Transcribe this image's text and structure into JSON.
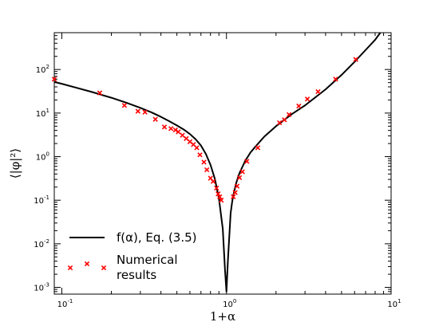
{
  "chart_data": {
    "type": "scatter",
    "xscale": "log",
    "yscale": "log",
    "xlim": [
      0.09,
      10
    ],
    "ylim": [
      0.0007,
      700
    ],
    "grid": false,
    "legend_placement": "lower-left",
    "xlabel": "1+α",
    "ylabel": "⟨|φ|²⟩",
    "x_ticks": [
      {
        "value": 0.1,
        "mantissa": "10",
        "exp": "-1"
      },
      {
        "value": 1,
        "mantissa": "10",
        "exp": "0"
      },
      {
        "value": 10,
        "mantissa": "10",
        "exp": "1"
      }
    ],
    "y_ticks": [
      {
        "value": 0.001,
        "mantissa": "10",
        "exp": "-3"
      },
      {
        "value": 0.01,
        "mantissa": "10",
        "exp": "-2"
      },
      {
        "value": 0.1,
        "mantissa": "10",
        "exp": "-1"
      },
      {
        "value": 1,
        "mantissa": "10",
        "exp": "0"
      },
      {
        "value": 10,
        "mantissa": "10",
        "exp": "1"
      },
      {
        "value": 100,
        "mantissa": "10",
        "exp": "2"
      }
    ],
    "series": [
      {
        "name": "f(α), Eq. (3.5)",
        "kind": "line",
        "color": "#000000",
        "points": [
          [
            0.09,
            52
          ],
          [
            0.1,
            47
          ],
          [
            0.12,
            39
          ],
          [
            0.15,
            31
          ],
          [
            0.2,
            22.5
          ],
          [
            0.25,
            17
          ],
          [
            0.3,
            13.2
          ],
          [
            0.35,
            10.4
          ],
          [
            0.4,
            8.2
          ],
          [
            0.45,
            6.5
          ],
          [
            0.5,
            5.2
          ],
          [
            0.55,
            4.2
          ],
          [
            0.6,
            3.3
          ],
          [
            0.65,
            2.5
          ],
          [
            0.7,
            1.8
          ],
          [
            0.75,
            1.15
          ],
          [
            0.8,
            0.65
          ],
          [
            0.85,
            0.31
          ],
          [
            0.9,
            0.11
          ],
          [
            0.95,
            0.022
          ],
          [
            0.98,
            0.0025
          ],
          [
            1.0,
            0.0008
          ],
          [
            1.02,
            0.004
          ],
          [
            1.06,
            0.05
          ],
          [
            1.08,
            0.085
          ],
          [
            1.1,
            0.13
          ],
          [
            1.15,
            0.26
          ],
          [
            1.2,
            0.42
          ],
          [
            1.3,
            0.8
          ],
          [
            1.4,
            1.25
          ],
          [
            1.5,
            1.7
          ],
          [
            1.7,
            2.9
          ],
          [
            2.0,
            5.0
          ],
          [
            2.5,
            9.5
          ],
          [
            3.0,
            15
          ],
          [
            4.0,
            35
          ],
          [
            5.0,
            75
          ],
          [
            6.0,
            150
          ],
          [
            7.0,
            280
          ],
          [
            8.0,
            480
          ],
          [
            8.6,
            700
          ]
        ]
      },
      {
        "name": "Numerical results",
        "legend_lines": [
          "Numerical",
          " results"
        ],
        "kind": "scatter",
        "marker": "x",
        "color": "#ff0000",
        "points": [
          [
            0.09,
            60
          ],
          [
            0.17,
            29
          ],
          [
            0.24,
            15
          ],
          [
            0.29,
            11
          ],
          [
            0.32,
            10.5
          ],
          [
            0.37,
            7.2
          ],
          [
            0.42,
            4.8
          ],
          [
            0.46,
            4.4
          ],
          [
            0.49,
            4.1
          ],
          [
            0.51,
            3.7
          ],
          [
            0.54,
            3.1
          ],
          [
            0.57,
            2.6
          ],
          [
            0.6,
            2.2
          ],
          [
            0.63,
            1.9
          ],
          [
            0.66,
            1.6
          ],
          [
            0.69,
            1.1
          ],
          [
            0.73,
            0.75
          ],
          [
            0.76,
            0.5
          ],
          [
            0.8,
            0.32
          ],
          [
            0.83,
            0.27
          ],
          [
            0.87,
            0.19
          ],
          [
            0.89,
            0.14
          ],
          [
            0.91,
            0.12
          ],
          [
            0.93,
            0.1
          ],
          [
            1.1,
            0.12
          ],
          [
            1.13,
            0.15
          ],
          [
            1.16,
            0.21
          ],
          [
            1.2,
            0.33
          ],
          [
            1.25,
            0.45
          ],
          [
            1.33,
            0.78
          ],
          [
            1.55,
            1.6
          ],
          [
            2.1,
            6.0
          ],
          [
            2.25,
            7.0
          ],
          [
            2.4,
            9.2
          ],
          [
            2.75,
            14.5
          ],
          [
            3.1,
            21
          ],
          [
            3.6,
            31
          ],
          [
            4.6,
            60
          ],
          [
            6.1,
            170
          ]
        ]
      }
    ]
  }
}
